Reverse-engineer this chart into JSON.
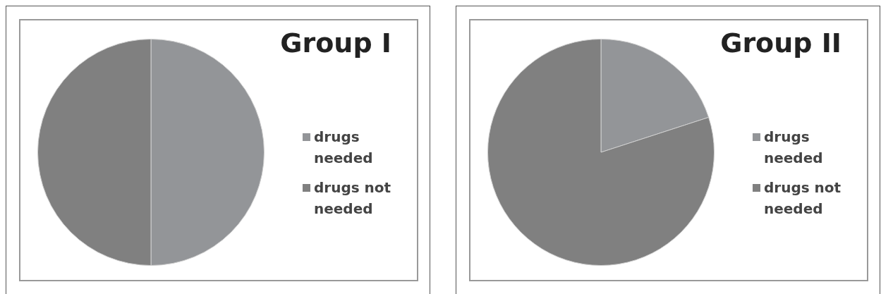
{
  "chart_data": [
    {
      "type": "pie",
      "title": "Group I",
      "categories": [
        "drugs needed",
        "drugs not needed"
      ],
      "values": [
        50,
        50
      ],
      "colors": [
        "#939598",
        "#808080"
      ],
      "legend": "right"
    },
    {
      "type": "pie",
      "title": "Group II",
      "categories": [
        "drugs needed",
        "drugs not needed"
      ],
      "values": [
        20,
        80
      ],
      "colors": [
        "#939598",
        "#808080"
      ],
      "legend": "right"
    }
  ]
}
